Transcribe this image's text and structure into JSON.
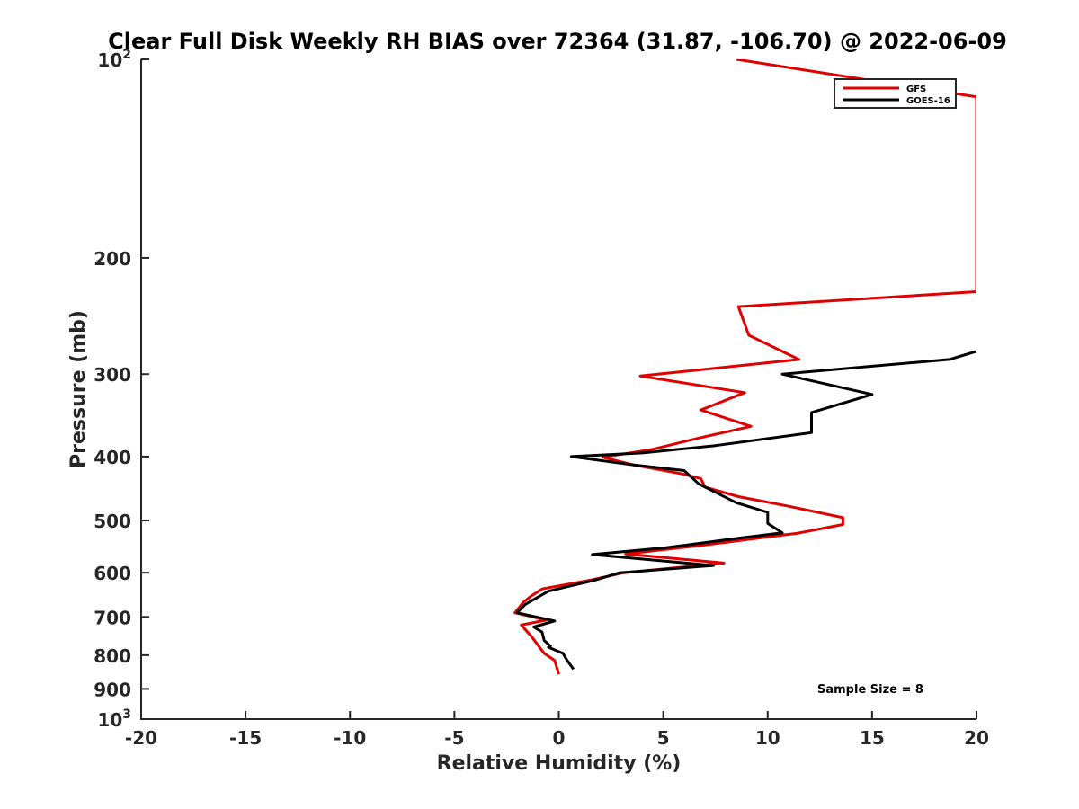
{
  "chart_data": {
    "type": "line",
    "title": "Clear Full Disk Weekly RH BIAS over 72364 (31.87, -106.70) @ 2022-06-09",
    "xlabel": "Relative Humidity (%)",
    "ylabel": "Pressure (mb)",
    "xlim": [
      -20,
      20
    ],
    "ylim": [
      1000,
      100
    ],
    "yscale": "log",
    "y_reversed": true,
    "grid": false,
    "legend_position": "top-right",
    "x_ticks": [
      {
        "value": -20,
        "label": "-20"
      },
      {
        "value": -15,
        "label": "-15"
      },
      {
        "value": -10,
        "label": "-10"
      },
      {
        "value": -5,
        "label": "-5"
      },
      {
        "value": 0,
        "label": "0"
      },
      {
        "value": 5,
        "label": "5"
      },
      {
        "value": 10,
        "label": "10"
      },
      {
        "value": 15,
        "label": "15"
      },
      {
        "value": 20,
        "label": "20"
      }
    ],
    "y_ticks": [
      {
        "value": 100,
        "base": "10",
        "exp": "2"
      },
      {
        "value": 200,
        "label": "200"
      },
      {
        "value": 300,
        "label": "300"
      },
      {
        "value": 400,
        "label": "400"
      },
      {
        "value": 500,
        "label": "500"
      },
      {
        "value": 600,
        "label": "600"
      },
      {
        "value": 700,
        "label": "700"
      },
      {
        "value": 800,
        "label": "800"
      },
      {
        "value": 900,
        "label": "900"
      },
      {
        "value": 1000,
        "base": "10",
        "exp": "3"
      }
    ],
    "series": [
      {
        "name": "GFS",
        "color": "#e00000",
        "points": [
          [
            8.5,
            100
          ],
          [
            20,
            114
          ],
          [
            20,
            225
          ],
          [
            8.6,
            237
          ],
          [
            9.1,
            262
          ],
          [
            11.5,
            285
          ],
          [
            3.9,
            302
          ],
          [
            8.9,
            320
          ],
          [
            6.8,
            340
          ],
          [
            9.2,
            360
          ],
          [
            6.7,
            375
          ],
          [
            4.5,
            390
          ],
          [
            2.1,
            401
          ],
          [
            3.6,
            412
          ],
          [
            5.9,
            425
          ],
          [
            6.8,
            432
          ],
          [
            7.0,
            445
          ],
          [
            8.6,
            460
          ],
          [
            10.9,
            475
          ],
          [
            13.6,
            495
          ],
          [
            13.6,
            507
          ],
          [
            11.4,
            523
          ],
          [
            10.7,
            526
          ],
          [
            6.9,
            545
          ],
          [
            3.2,
            562
          ],
          [
            7.9,
            580
          ],
          [
            3.1,
            600
          ],
          [
            1.6,
            615
          ],
          [
            -0.8,
            635
          ],
          [
            -1.3,
            650
          ],
          [
            -1.7,
            665
          ],
          [
            -2.1,
            690
          ],
          [
            -0.6,
            708
          ],
          [
            -1.8,
            720
          ],
          [
            -1.3,
            750
          ],
          [
            -0.7,
            795
          ],
          [
            -0.2,
            815
          ],
          [
            0,
            855
          ]
        ]
      },
      {
        "name": "GOES-16",
        "color": "#000000",
        "points": [
          [
            20,
            277
          ],
          [
            18.7,
            285
          ],
          [
            10.7,
            300
          ],
          [
            15.0,
            322
          ],
          [
            12.1,
            343
          ],
          [
            12.1,
            368
          ],
          [
            7.5,
            385
          ],
          [
            4.0,
            395
          ],
          [
            0.6,
            400
          ],
          [
            3.6,
            412
          ],
          [
            6.0,
            420
          ],
          [
            6.7,
            440
          ],
          [
            8.5,
            470
          ],
          [
            10.0,
            486
          ],
          [
            10.0,
            505
          ],
          [
            10.7,
            522
          ],
          [
            8.6,
            532
          ],
          [
            5.1,
            550
          ],
          [
            1.6,
            563
          ],
          [
            7.4,
            585
          ],
          [
            2.9,
            600
          ],
          [
            1.8,
            615
          ],
          [
            -0.5,
            640
          ],
          [
            -1.6,
            670
          ],
          [
            -2.0,
            690
          ],
          [
            -0.2,
            710
          ],
          [
            -1.2,
            725
          ],
          [
            -0.8,
            738
          ],
          [
            -0.7,
            760
          ],
          [
            -0.4,
            775
          ],
          [
            -0.5,
            778
          ],
          [
            0.2,
            795
          ],
          [
            0.4,
            815
          ],
          [
            0.7,
            840
          ]
        ]
      }
    ],
    "annotations": [
      {
        "text": "Sample Size = 8"
      }
    ]
  }
}
